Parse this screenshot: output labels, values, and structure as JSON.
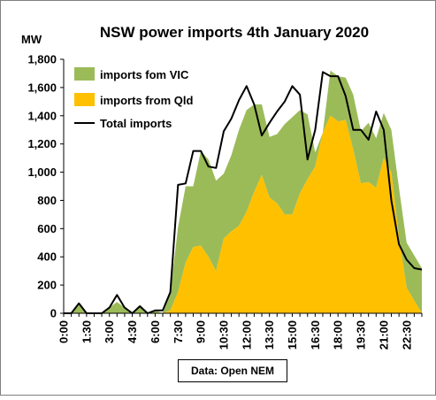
{
  "chart_data": {
    "type": "area",
    "title": "NSW power imports 4th January  2020",
    "ylabel": "MW",
    "xlabel": "",
    "ylim": [
      0,
      1800
    ],
    "yticks": [
      0,
      200,
      400,
      600,
      800,
      1000,
      1200,
      1400,
      1600,
      1800
    ],
    "ytick_labels": [
      "0",
      "200",
      "400",
      "600",
      "800",
      "1,000",
      "1,200",
      "1,400",
      "1,600",
      "1,800"
    ],
    "x": [
      "0:00",
      "0:30",
      "1:00",
      "1:30",
      "2:00",
      "2:30",
      "3:00",
      "3:30",
      "4:00",
      "4:30",
      "5:00",
      "5:30",
      "6:00",
      "6:30",
      "7:00",
      "7:30",
      "8:00",
      "8:30",
      "9:00",
      "9:30",
      "10:00",
      "10:30",
      "11:00",
      "11:30",
      "12:00",
      "12:30",
      "13:00",
      "13:30",
      "14:00",
      "14:30",
      "15:00",
      "15:30",
      "16:00",
      "16:30",
      "17:00",
      "17:30",
      "18:00",
      "18:30",
      "19:00",
      "19:30",
      "20:00",
      "20:30",
      "21:00",
      "21:30",
      "22:00",
      "22:30",
      "23:00",
      "23:30"
    ],
    "xtick_labels": [
      "0:00",
      "",
      "",
      "1:30",
      "",
      "",
      "3:00",
      "",
      "",
      "4:30",
      "",
      "",
      "6:00",
      "",
      "",
      "7:30",
      "",
      "",
      "9:00",
      "",
      "",
      "10:30",
      "",
      "",
      "12:00",
      "",
      "",
      "13:30",
      "",
      "",
      "15:00",
      "",
      "",
      "16:30",
      "",
      "",
      "18:00",
      "",
      "",
      "19:30",
      "",
      "",
      "21:00",
      "",
      "",
      "22:30",
      "",
      ""
    ],
    "series": [
      {
        "name": "imports fom VIC",
        "role": "stacked-top",
        "color": "#9bbb59",
        "values": [
          0,
          0,
          70,
          0,
          0,
          0,
          40,
          80,
          40,
          0,
          50,
          0,
          20,
          0,
          130,
          460,
          540,
          430,
          670,
          690,
          640,
          460,
          540,
          680,
          720,
          620,
          500,
          430,
          490,
          640,
          690,
          590,
          460,
          100,
          0,
          320,
          320,
          300,
          390,
          370,
          420,
          350,
          320,
          300,
          350,
          320,
          320,
          320
        ]
      },
      {
        "name": "imports from Qld",
        "role": "stacked-base",
        "color": "#ffc000",
        "values": [
          0,
          0,
          0,
          0,
          0,
          0,
          0,
          0,
          0,
          0,
          0,
          0,
          0,
          0,
          20,
          150,
          360,
          470,
          480,
          400,
          300,
          530,
          580,
          620,
          720,
          860,
          980,
          820,
          780,
          700,
          700,
          850,
          950,
          1040,
          1280,
          1400,
          1360,
          1370,
          1160,
          920,
          930,
          890,
          1100,
          1000,
          540,
          180,
          90,
          0
        ]
      },
      {
        "name": "Total imports",
        "role": "line",
        "color": "#000000",
        "values": [
          0,
          0,
          70,
          0,
          0,
          0,
          40,
          130,
          40,
          0,
          50,
          0,
          20,
          20,
          150,
          910,
          920,
          1150,
          1150,
          1040,
          1030,
          1290,
          1380,
          1510,
          1610,
          1480,
          1260,
          1350,
          1430,
          1500,
          1610,
          1550,
          1090,
          1300,
          1710,
          1680,
          1680,
          1540,
          1300,
          1300,
          1230,
          1430,
          1300,
          800,
          490,
          380,
          320,
          310
        ]
      }
    ],
    "legend": [
      "imports fom VIC",
      "imports from Qld",
      "Total imports"
    ],
    "legend_position": "top-left",
    "grid": false,
    "source": "Data: Open NEM"
  }
}
